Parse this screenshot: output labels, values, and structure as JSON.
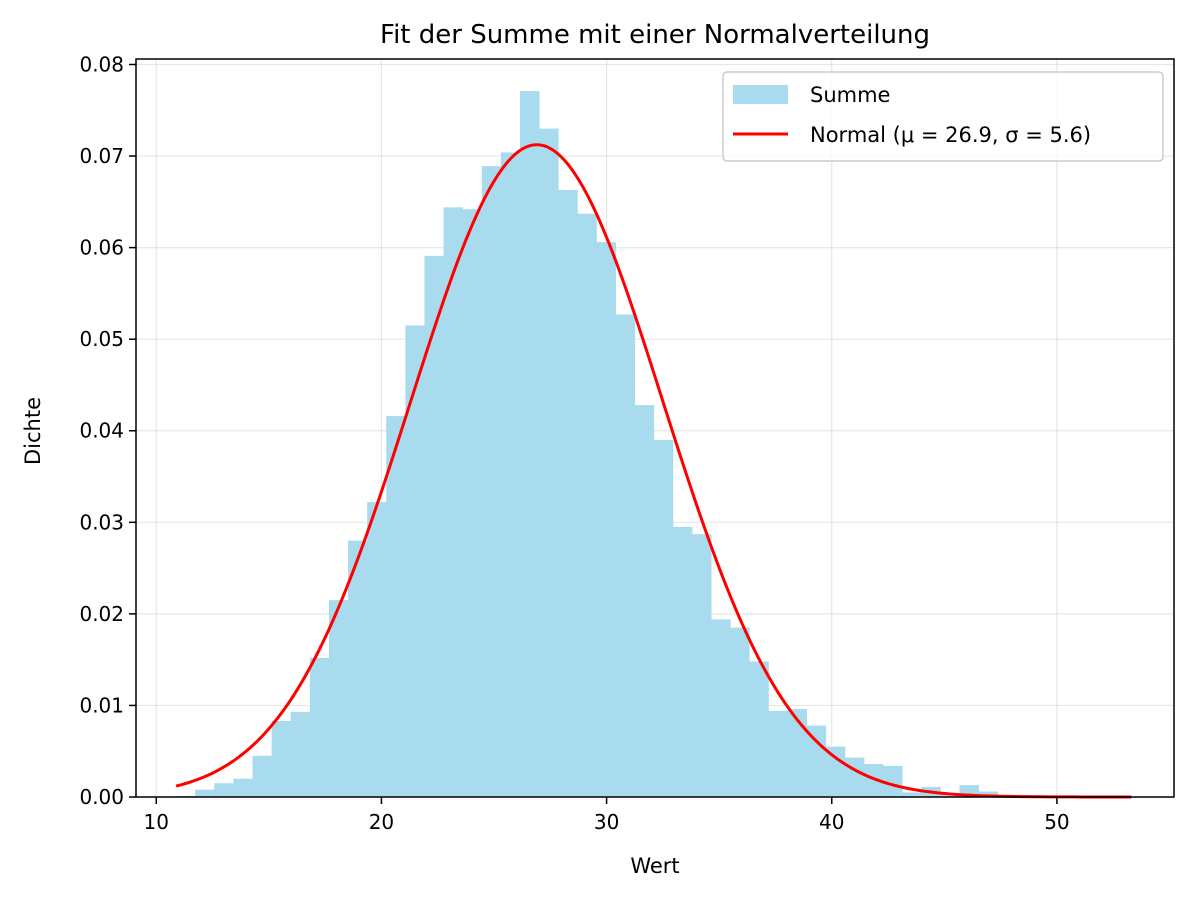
{
  "chart_data": {
    "type": "bar",
    "title": "Fit der Summe mit einer Normalverteilung",
    "xlabel": "Wert",
    "ylabel": "Dichte",
    "xlim": [
      9.1,
      55.2
    ],
    "ylim": [
      0,
      0.0806
    ],
    "xticks": [
      10,
      20,
      30,
      40,
      50
    ],
    "xtick_labels": [
      "10",
      "20",
      "30",
      "40",
      "50"
    ],
    "yticks": [
      0.0,
      0.01,
      0.02,
      0.03,
      0.04,
      0.05,
      0.06,
      0.07,
      0.08
    ],
    "ytick_labels": [
      "0.00",
      "0.01",
      "0.02",
      "0.03",
      "0.04",
      "0.05",
      "0.06",
      "0.07",
      "0.08"
    ],
    "grid": true,
    "legend_position": "top-right",
    "histogram": {
      "name": "Summe",
      "color": "#a8dbee",
      "bin_start": 10.88,
      "bin_width": 0.8486,
      "values": [
        0.0001,
        0.0008,
        0.0015,
        0.002,
        0.0045,
        0.0083,
        0.0093,
        0.0152,
        0.0215,
        0.028,
        0.0322,
        0.0416,
        0.0515,
        0.0591,
        0.0644,
        0.0642,
        0.0689,
        0.0704,
        0.0771,
        0.073,
        0.0663,
        0.0637,
        0.0606,
        0.0527,
        0.0428,
        0.039,
        0.0295,
        0.0287,
        0.0194,
        0.0185,
        0.0148,
        0.0094,
        0.0096,
        0.0078,
        0.0055,
        0.0043,
        0.0036,
        0.0034,
        0.0005,
        0.0011,
        0.0003,
        0.0013,
        0.0006,
        0.0002,
        0.0002,
        0.0001,
        0.0001,
        0.0001,
        0.0001,
        0.0001
      ]
    },
    "series": [
      {
        "name": "Normal (μ = 26.9, σ = 5.6)",
        "type": "line",
        "color": "#ff0000",
        "mu": 26.9,
        "sigma": 5.6,
        "x_range": [
          10.88,
          53.3
        ]
      }
    ],
    "legend": {
      "entries": [
        {
          "label": "Summe",
          "kind": "patch",
          "color": "#a8dbee"
        },
        {
          "label": "Normal (μ = 26.9, σ = 5.6)",
          "kind": "line",
          "color": "#ff0000"
        }
      ]
    }
  }
}
